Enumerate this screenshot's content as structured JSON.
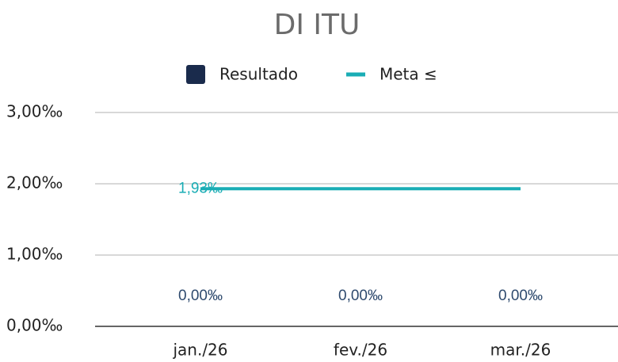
{
  "chart_data": {
    "type": "bar",
    "title": "DI ITU",
    "categories": [
      "jan./26",
      "fev./26",
      "mar./26"
    ],
    "series": [
      {
        "name": "Resultado",
        "type": "bar",
        "color": "#1a2b4c",
        "values": [
          0,
          0,
          0
        ],
        "value_labels": [
          "0,00‰",
          "0,00‰",
          "0,00‰"
        ]
      },
      {
        "name": "Meta ≤",
        "type": "line",
        "color": "#1aadb5",
        "values": [
          1.93,
          1.93,
          1.93
        ],
        "value_labels": [
          "1,93‰",
          null,
          null
        ]
      }
    ],
    "ylim": [
      0,
      3
    ],
    "yticks": [
      {
        "value": 0,
        "label": "0,00‰"
      },
      {
        "value": 1,
        "label": "1,00‰"
      },
      {
        "value": 2,
        "label": "2,00‰"
      },
      {
        "value": 3,
        "label": "3,00‰"
      }
    ],
    "grid": true,
    "legend": "top"
  }
}
